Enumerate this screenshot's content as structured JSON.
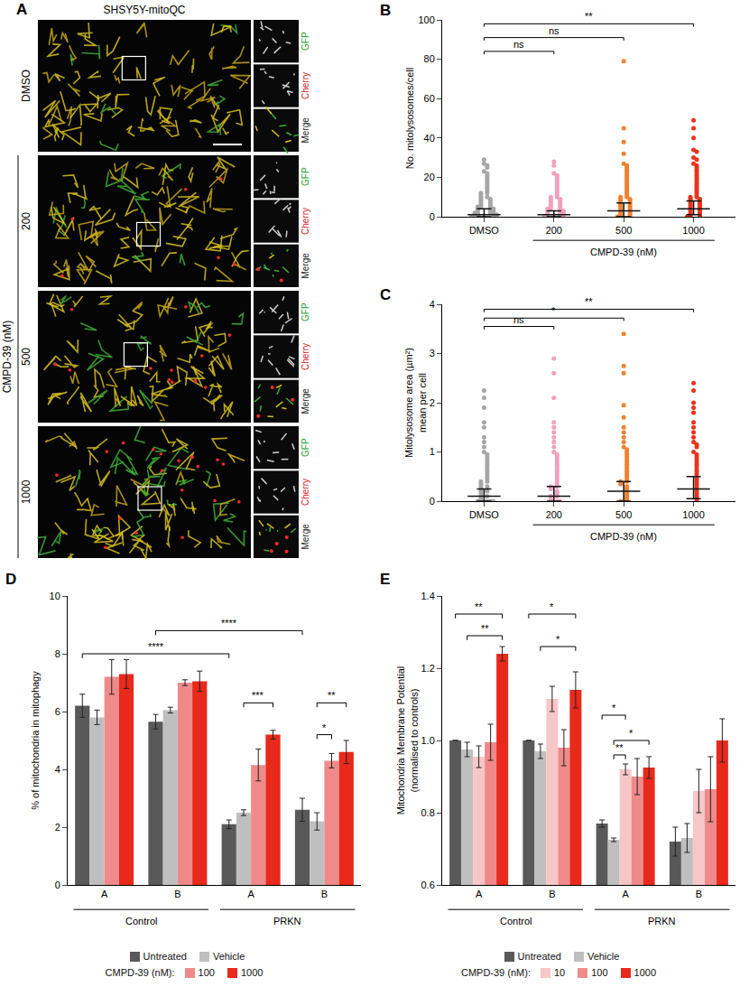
{
  "panel_a": {
    "panel": "A",
    "title": "SHSY5Y-mitoQC",
    "rows": [
      "DMSO",
      "200",
      "500",
      "1000"
    ],
    "row_group": "CMPD-39 (nM)",
    "channels": [
      "GFP",
      "Cherry",
      "Merge"
    ]
  },
  "chart_data": [
    {
      "panel": "B",
      "type": "scatter",
      "grid": false,
      "categories": [
        "DMSO",
        "200",
        "500",
        "1000"
      ],
      "colors": [
        "#a6a6a6",
        "#f2a0bd",
        "#f0812f",
        "#e8341c"
      ],
      "y_label": [
        "No. mitolysosomes/cell"
      ],
      "ylim": [
        0,
        100
      ],
      "yticks": [
        0,
        20,
        40,
        60,
        80,
        100
      ],
      "group_label": {
        "text": "CMPD-39 (nM)",
        "from": 1,
        "to": 3
      },
      "values": [
        [
          29,
          27,
          26,
          25,
          23,
          22,
          21,
          20,
          19,
          18,
          17,
          16,
          15,
          14,
          13,
          12,
          12,
          11,
          10,
          10,
          9,
          9,
          8,
          8,
          7,
          7,
          6,
          6,
          5,
          5,
          5,
          4,
          4,
          4,
          3,
          3,
          3,
          2,
          2,
          2,
          2,
          1,
          1,
          1,
          1,
          0,
          0,
          0,
          0,
          0
        ],
        [
          28,
          26,
          22,
          21,
          20,
          19,
          18,
          17,
          16,
          15,
          14,
          13,
          12,
          11,
          10,
          10,
          9,
          9,
          8,
          8,
          7,
          7,
          6,
          6,
          5,
          5,
          4,
          4,
          4,
          3,
          3,
          3,
          2,
          2,
          2,
          1,
          1,
          1,
          0,
          0,
          0,
          0
        ],
        [
          79,
          45,
          38,
          32,
          27,
          26,
          25,
          24,
          23,
          22,
          21,
          20,
          19,
          18,
          17,
          16,
          15,
          14,
          13,
          12,
          11,
          10,
          10,
          9,
          9,
          8,
          8,
          7,
          7,
          6,
          6,
          5,
          5,
          4,
          4,
          3,
          3,
          2,
          2,
          1,
          1,
          0,
          0,
          0
        ],
        [
          49,
          45,
          40,
          34,
          33,
          30,
          29,
          27,
          26,
          25,
          24,
          23,
          22,
          21,
          20,
          19,
          18,
          17,
          16,
          15,
          14,
          13,
          12,
          11,
          10,
          10,
          9,
          9,
          8,
          8,
          7,
          7,
          6,
          6,
          5,
          5,
          4,
          4,
          3,
          3,
          2,
          2,
          1,
          1,
          0,
          0,
          0
        ]
      ],
      "medians": [
        1,
        1,
        3,
        4
      ],
      "iqr": [
        [
          0,
          4
        ],
        [
          0,
          3
        ],
        [
          0,
          7
        ],
        [
          1,
          8
        ]
      ],
      "significance": [
        {
          "from": 0,
          "to": 1,
          "y": 84,
          "label": "ns"
        },
        {
          "from": 0,
          "to": 2,
          "y": 91,
          "label": "ns"
        },
        {
          "from": 0,
          "to": 3,
          "y": 98,
          "label": "**"
        }
      ]
    },
    {
      "panel": "C",
      "type": "scatter",
      "grid": false,
      "categories": [
        "DMSO",
        "200",
        "500",
        "1000"
      ],
      "colors": [
        "#a6a6a6",
        "#f2a0bd",
        "#f0812f",
        "#e8341c"
      ],
      "y_label": [
        "Mitolysosome area (µm²)",
        "mean per cell"
      ],
      "ylim": [
        0,
        4
      ],
      "yticks": [
        0,
        1,
        2,
        3,
        4
      ],
      "group_label": {
        "text": "CMPD-39 (nM)",
        "from": 1,
        "to": 3
      },
      "values": [
        [
          2.25,
          2.1,
          1.9,
          1.6,
          1.5,
          1.3,
          1.2,
          1.1,
          1.0,
          0.95,
          0.9,
          0.85,
          0.8,
          0.75,
          0.7,
          0.65,
          0.6,
          0.55,
          0.5,
          0.45,
          0.4,
          0.4,
          0.35,
          0.3,
          0.3,
          0.25,
          0.2,
          0.2,
          0.15,
          0.1,
          0.1,
          0.05,
          0,
          0,
          0,
          0,
          0
        ],
        [
          2.9,
          2.6,
          2.1,
          1.6,
          1.5,
          1.4,
          1.3,
          1.2,
          1.1,
          1.0,
          0.95,
          0.9,
          0.85,
          0.8,
          0.75,
          0.7,
          0.65,
          0.6,
          0.55,
          0.5,
          0.45,
          0.4,
          0.35,
          0.3,
          0.3,
          0.25,
          0.2,
          0.15,
          0.1,
          0.1,
          0.05,
          0,
          0,
          0
        ],
        [
          3.4,
          2.75,
          2.6,
          1.95,
          1.7,
          1.5,
          1.4,
          1.3,
          1.2,
          1.1,
          1.05,
          1.0,
          0.95,
          0.9,
          0.85,
          0.8,
          0.75,
          0.7,
          0.65,
          0.6,
          0.55,
          0.5,
          0.45,
          0.4,
          0.4,
          0.35,
          0.3,
          0.25,
          0.2,
          0.15,
          0.1,
          0.05,
          0,
          0
        ],
        [
          2.4,
          2.25,
          2.0,
          1.9,
          1.8,
          1.6,
          1.5,
          1.4,
          1.3,
          1.2,
          1.15,
          1.1,
          1.0,
          0.95,
          0.9,
          0.85,
          0.8,
          0.75,
          0.7,
          0.65,
          0.6,
          0.55,
          0.5,
          0.45,
          0.4,
          0.35,
          0.3,
          0.25,
          0.2,
          0.15,
          0.1,
          0.05,
          0
        ]
      ],
      "medians": [
        0.1,
        0.1,
        0.2,
        0.25
      ],
      "iqr": [
        [
          0,
          0.25
        ],
        [
          0,
          0.3
        ],
        [
          0,
          0.4
        ],
        [
          0.05,
          0.5
        ]
      ],
      "significance": [
        {
          "from": 0,
          "to": 1,
          "y": 3.55,
          "label": "ns"
        },
        {
          "from": 0,
          "to": 2,
          "y": 3.72,
          "label": "*"
        },
        {
          "from": 0,
          "to": 3,
          "y": 3.9,
          "label": "**"
        }
      ]
    },
    {
      "panel": "D",
      "type": "bar",
      "grid": false,
      "categories": [
        "A",
        "B",
        "A",
        "B"
      ],
      "category_groups": [
        "Control",
        "Control",
        "PRKN",
        "PRKN"
      ],
      "y_label": [
        "% of mitochondria in mitophagy"
      ],
      "ylim": [
        0,
        10
      ],
      "yticks": [
        0,
        2,
        4,
        6,
        8,
        10
      ],
      "legend_title": "CMPD-39 (nM):",
      "series": [
        {
          "name": "Untreated",
          "color": "#595959",
          "values": [
            6.2,
            5.65,
            2.1,
            2.6
          ],
          "errors": [
            0.4,
            0.25,
            0.15,
            0.4
          ]
        },
        {
          "name": "Vehicle",
          "color": "#bfbfbf",
          "values": [
            5.8,
            6.05,
            2.5,
            2.2
          ],
          "errors": [
            0.25,
            0.1,
            0.1,
            0.3
          ]
        },
        {
          "name": "100",
          "color": "#f08a8a",
          "values": [
            7.2,
            7.0,
            4.15,
            4.3
          ],
          "errors": [
            0.6,
            0.1,
            0.55,
            0.25
          ],
          "dose": true
        },
        {
          "name": "1000",
          "color": "#e8291c",
          "values": [
            7.3,
            7.05,
            5.2,
            4.6
          ],
          "errors": [
            0.5,
            0.35,
            0.15,
            0.4
          ],
          "dose": true
        }
      ],
      "significance": [
        {
          "from": {
            "group": 0,
            "series": "Untreated"
          },
          "to": {
            "group": 2,
            "series": "Untreated"
          },
          "y": 8.0,
          "label": "****"
        },
        {
          "from": {
            "group": 1,
            "series": "Untreated"
          },
          "to": {
            "group": 3,
            "series": "Untreated"
          },
          "y": 8.8,
          "label": "****"
        },
        {
          "from": {
            "group": 2,
            "series": "Vehicle"
          },
          "to": {
            "group": 2,
            "series": "1000"
          },
          "y": 6.3,
          "label": "***"
        },
        {
          "from": {
            "group": 3,
            "series": "Vehicle"
          },
          "to": {
            "group": 3,
            "series": "100"
          },
          "y": 5.2,
          "label": "*"
        },
        {
          "from": {
            "group": 3,
            "series": "Vehicle"
          },
          "to": {
            "group": 3,
            "series": "1000"
          },
          "y": 6.3,
          "label": "**"
        }
      ]
    },
    {
      "panel": "E",
      "type": "bar",
      "grid": false,
      "categories": [
        "A",
        "B",
        "A",
        "B"
      ],
      "category_groups": [
        "Control",
        "Control",
        "PRKN",
        "PRKN"
      ],
      "y_label": [
        "Mitochondria Membrane Potential",
        "(normalised to controls)"
      ],
      "ylim": [
        0.6,
        1.4
      ],
      "yticks": [
        0.6,
        0.8,
        {
          "value": 1,
          "label": "1.0"
        },
        1.2,
        1.4
      ],
      "legend_title": "CMPD-39 (nM):",
      "series": [
        {
          "name": "Untreated",
          "color": "#595959",
          "values": [
            1.0,
            1.0,
            0.77,
            0.72
          ],
          "errors": [
            0,
            0,
            0.01,
            0.04
          ]
        },
        {
          "name": "Vehicle",
          "color": "#bfbfbf",
          "values": [
            0.975,
            0.97,
            0.725,
            0.73
          ],
          "errors": [
            0.02,
            0.02,
            0.005,
            0.04
          ]
        },
        {
          "name": "10",
          "color": "#f7c6c6",
          "values": [
            0.955,
            1.115,
            0.92,
            0.86
          ],
          "errors": [
            0.03,
            0.035,
            0.015,
            0.06
          ],
          "dose": true
        },
        {
          "name": "100",
          "color": "#f08a8a",
          "values": [
            0.995,
            0.98,
            0.9,
            0.865
          ],
          "errors": [
            0.05,
            0.05,
            0.05,
            0.09
          ],
          "dose": true
        },
        {
          "name": "1000",
          "color": "#e8291c",
          "values": [
            1.24,
            1.14,
            0.925,
            1.0
          ],
          "errors": [
            0.02,
            0.05,
            0.03,
            0.06
          ],
          "dose": true
        }
      ],
      "significance": [
        {
          "from": {
            "group": 0,
            "series": "Untreated"
          },
          "to": {
            "group": 0,
            "series": "1000"
          },
          "y": 1.35,
          "label": "**"
        },
        {
          "from": {
            "group": 0,
            "series": "Vehicle"
          },
          "to": {
            "group": 0,
            "series": "1000"
          },
          "y": 1.29,
          "label": "**"
        },
        {
          "from": {
            "group": 1,
            "series": "Untreated"
          },
          "to": {
            "group": 1,
            "series": "1000"
          },
          "y": 1.35,
          "label": "*"
        },
        {
          "from": {
            "group": 1,
            "series": "Vehicle"
          },
          "to": {
            "group": 1,
            "series": "1000"
          },
          "y": 1.26,
          "label": "*"
        },
        {
          "from": {
            "group": 2,
            "series": "Untreated"
          },
          "to": {
            "group": 2,
            "series": "10"
          },
          "y": 1.07,
          "label": "*"
        },
        {
          "from": {
            "group": 2,
            "series": "Vehicle"
          },
          "to": {
            "group": 2,
            "series": "10"
          },
          "y": 0.96,
          "label": "**"
        },
        {
          "from": {
            "group": 2,
            "series": "Vehicle"
          },
          "to": {
            "group": 2,
            "series": "1000"
          },
          "y": 1.0,
          "label": "*"
        }
      ]
    }
  ]
}
